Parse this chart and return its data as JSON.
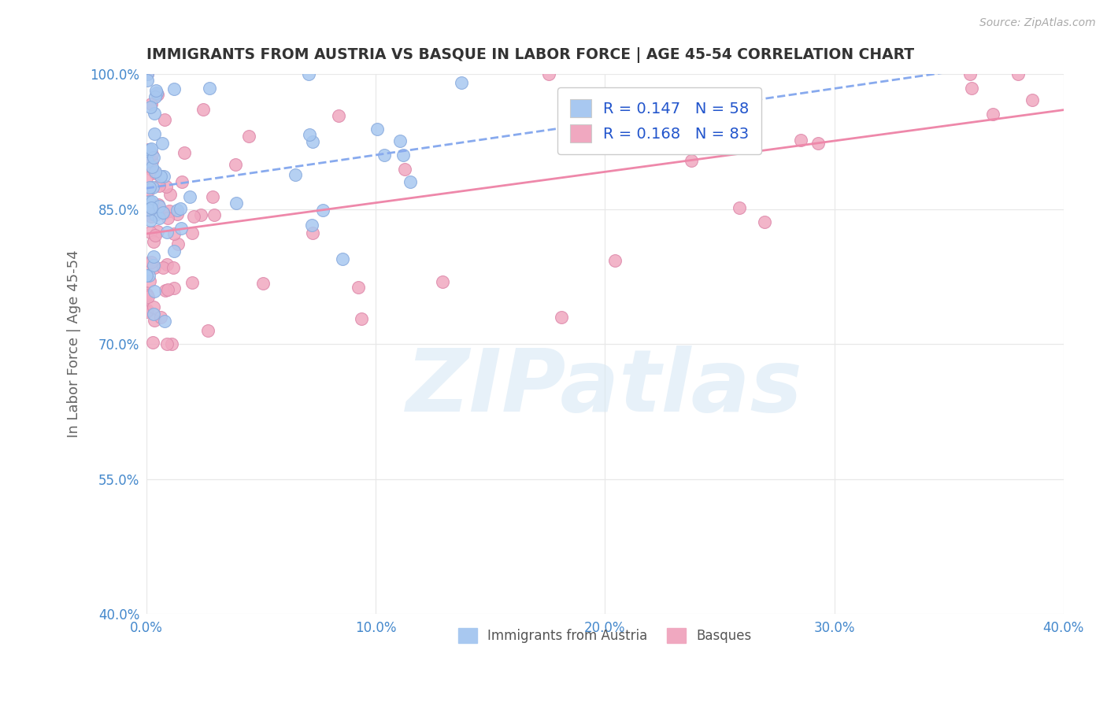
{
  "title": "IMMIGRANTS FROM AUSTRIA VS BASQUE IN LABOR FORCE | AGE 45-54 CORRELATION CHART",
  "source": "Source: ZipAtlas.com",
  "ylabel": "In Labor Force | Age 45-54",
  "xlim": [
    0.0,
    40.0
  ],
  "ylim": [
    40.0,
    100.0
  ],
  "xticks": [
    0.0,
    10.0,
    20.0,
    30.0,
    40.0
  ],
  "yticks": [
    40.0,
    55.0,
    70.0,
    85.0,
    100.0
  ],
  "austria_color": "#a8c8f0",
  "austria_edge": "#88aadd",
  "basque_color": "#f0a8c0",
  "basque_edge": "#dd88aa",
  "austria_R": 0.147,
  "austria_N": 58,
  "basque_R": 0.168,
  "basque_N": 83,
  "trend_austria_color": "#88aaee",
  "trend_basque_color": "#ee88aa",
  "watermark": "ZIPatlas",
  "watermark_color": "#d8e8f5",
  "legend_labels_bottom": [
    "Immigrants from Austria",
    "Basques"
  ],
  "background_color": "#ffffff",
  "grid_color": "#e8e8e8",
  "title_color": "#333333",
  "axis_label_color": "#666666",
  "tick_label_color": "#4488cc",
  "R_N_color": "#2255cc"
}
